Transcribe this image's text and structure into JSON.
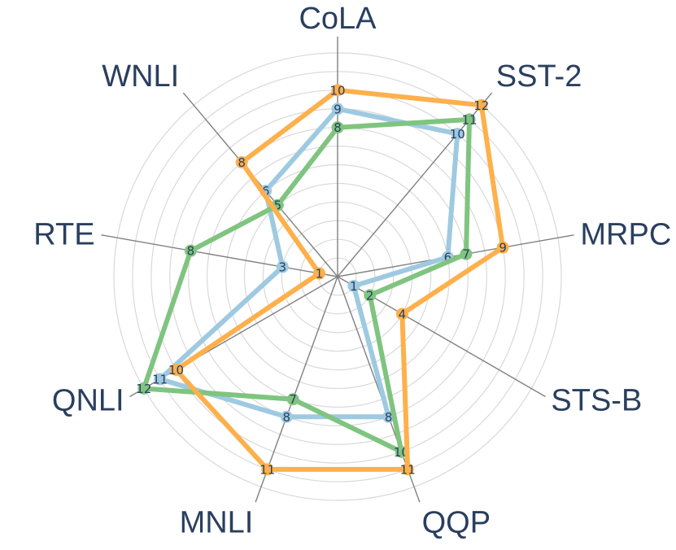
{
  "chart_data": {
    "type": "radar",
    "axes": [
      "CoLA",
      "SST-2",
      "MRPC",
      "STS-B",
      "QQP",
      "MNLI",
      "QNLI",
      "RTE",
      "WNLI"
    ],
    "rlim": [
      0,
      12
    ],
    "grid": true,
    "legend": "none",
    "series": [
      {
        "color": "#9ecae1",
        "values": [
          9,
          10,
          6,
          1,
          8,
          8,
          11,
          3,
          6
        ]
      },
      {
        "color": "#7fc47f",
        "values": [
          8,
          11,
          7,
          2,
          10,
          7,
          12,
          8,
          5
        ]
      },
      {
        "color": "#fdb04b",
        "values": [
          10,
          12,
          9,
          4,
          11,
          11,
          10,
          1,
          8
        ]
      }
    ]
  }
}
